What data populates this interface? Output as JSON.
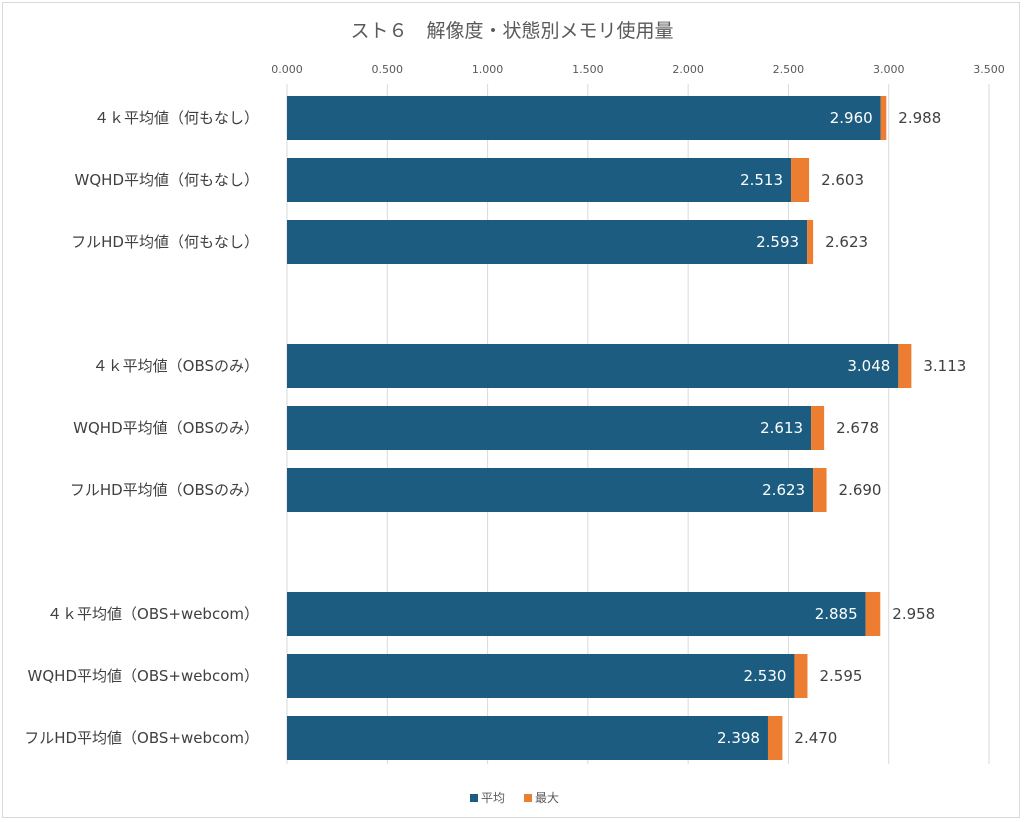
{
  "chart_data": {
    "type": "bar",
    "orientation": "horizontal",
    "stacked": true,
    "title": "スト６　解像度・状態別メモリ使用量",
    "xlim": [
      0,
      3.5
    ],
    "ticks": [
      "0.000",
      "0.500",
      "1.000",
      "1.500",
      "2.000",
      "2.500",
      "3.000",
      "3.500"
    ],
    "tick_values": [
      0,
      0.5,
      1.0,
      1.5,
      2.0,
      2.5,
      3.0,
      3.5
    ],
    "axis_position": "top",
    "grid": true,
    "legend_position": "bottom",
    "colors": {
      "avg": "#1b5c80",
      "max": "#ed7d31"
    },
    "groups": [
      [
        {
          "label": "４ｋ平均値（何もなし）",
          "avg": 2.96,
          "max": 2.988,
          "avg_label": "2.960",
          "max_label": "2.988"
        },
        {
          "label": "WQHD平均値（何もなし）",
          "avg": 2.513,
          "max": 2.603,
          "avg_label": "2.513",
          "max_label": "2.603"
        },
        {
          "label": "フルHD平均値（何もなし）",
          "avg": 2.593,
          "max": 2.623,
          "avg_label": "2.593",
          "max_label": "2.623"
        }
      ],
      [
        {
          "label": "４ｋ平均値（OBSのみ）",
          "avg": 3.048,
          "max": 3.113,
          "avg_label": "3.048",
          "max_label": "3.113"
        },
        {
          "label": "WQHD平均値（OBSのみ）",
          "avg": 2.613,
          "max": 2.678,
          "avg_label": "2.613",
          "max_label": "2.678"
        },
        {
          "label": "フルHD平均値（OBSのみ）",
          "avg": 2.623,
          "max": 2.69,
          "avg_label": "2.623",
          "max_label": "2.690"
        }
      ],
      [
        {
          "label": "４ｋ平均値（OBS+webcom）",
          "avg": 2.885,
          "max": 2.958,
          "avg_label": "2.885",
          "max_label": "2.958"
        },
        {
          "label": "WQHD平均値（OBS+webcom）",
          "avg": 2.53,
          "max": 2.595,
          "avg_label": "2.530",
          "max_label": "2.595"
        },
        {
          "label": "フルHD平均値（OBS+webcom）",
          "avg": 2.398,
          "max": 2.47,
          "avg_label": "2.398",
          "max_label": "2.470"
        }
      ]
    ],
    "legend": [
      {
        "name": "平均",
        "color": "#1b5c80"
      },
      {
        "name": "最大",
        "color": "#ed7d31"
      }
    ]
  }
}
